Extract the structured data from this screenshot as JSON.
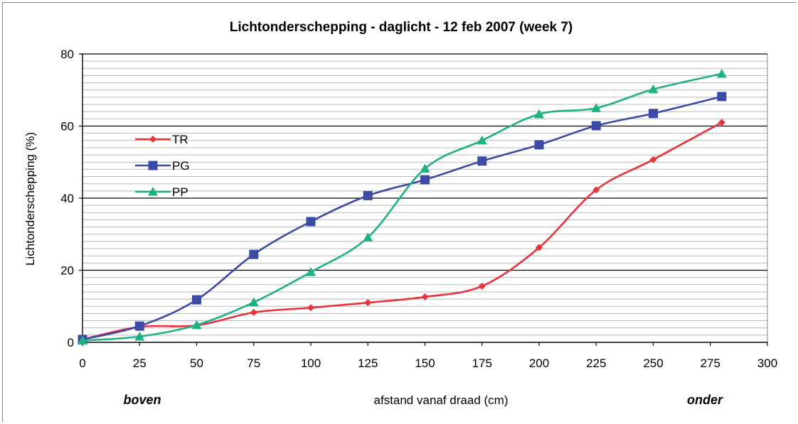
{
  "chart_data": {
    "type": "line",
    "title": "Lichtonderschepping  - daglicht - 12 feb 2007 (week 7)",
    "xlabel": "afstand vanaf draad (cm)",
    "ylabel": "Lichtonderschepping (%)",
    "x_side_labels": {
      "left": "boven",
      "right": "onder"
    },
    "xlim": [
      0,
      300
    ],
    "ylim": [
      0,
      80
    ],
    "x_ticks": [
      0,
      25,
      50,
      75,
      100,
      125,
      150,
      175,
      200,
      225,
      250,
      275,
      300
    ],
    "y_ticks": [
      0,
      20,
      40,
      60,
      80
    ],
    "grid": {
      "major_y": true,
      "minor_y_step": 2
    },
    "legend_position": "left, middle",
    "x": [
      0,
      25,
      50,
      75,
      100,
      125,
      150,
      175,
      200,
      225,
      250,
      280
    ],
    "series": [
      {
        "name": "TR",
        "color": "#e8323c",
        "marker": "diamond",
        "values": [
          0.8,
          4.3,
          4.7,
          8.3,
          9.6,
          11.0,
          12.6,
          15.6,
          26.3,
          42.3,
          50.7,
          61.0
        ]
      },
      {
        "name": "PG",
        "color": "#3c4aa6",
        "marker": "square",
        "values": [
          0.8,
          4.5,
          11.8,
          24.4,
          33.5,
          40.7,
          45.1,
          50.3,
          54.8,
          60.1,
          63.5,
          68.2
        ]
      },
      {
        "name": "PP",
        "color": "#1fb083",
        "marker": "triangle",
        "values": [
          0.5,
          1.6,
          4.8,
          11.1,
          19.5,
          29.1,
          48.2,
          56.0,
          63.3,
          65.0,
          70.2,
          74.5
        ]
      }
    ]
  }
}
